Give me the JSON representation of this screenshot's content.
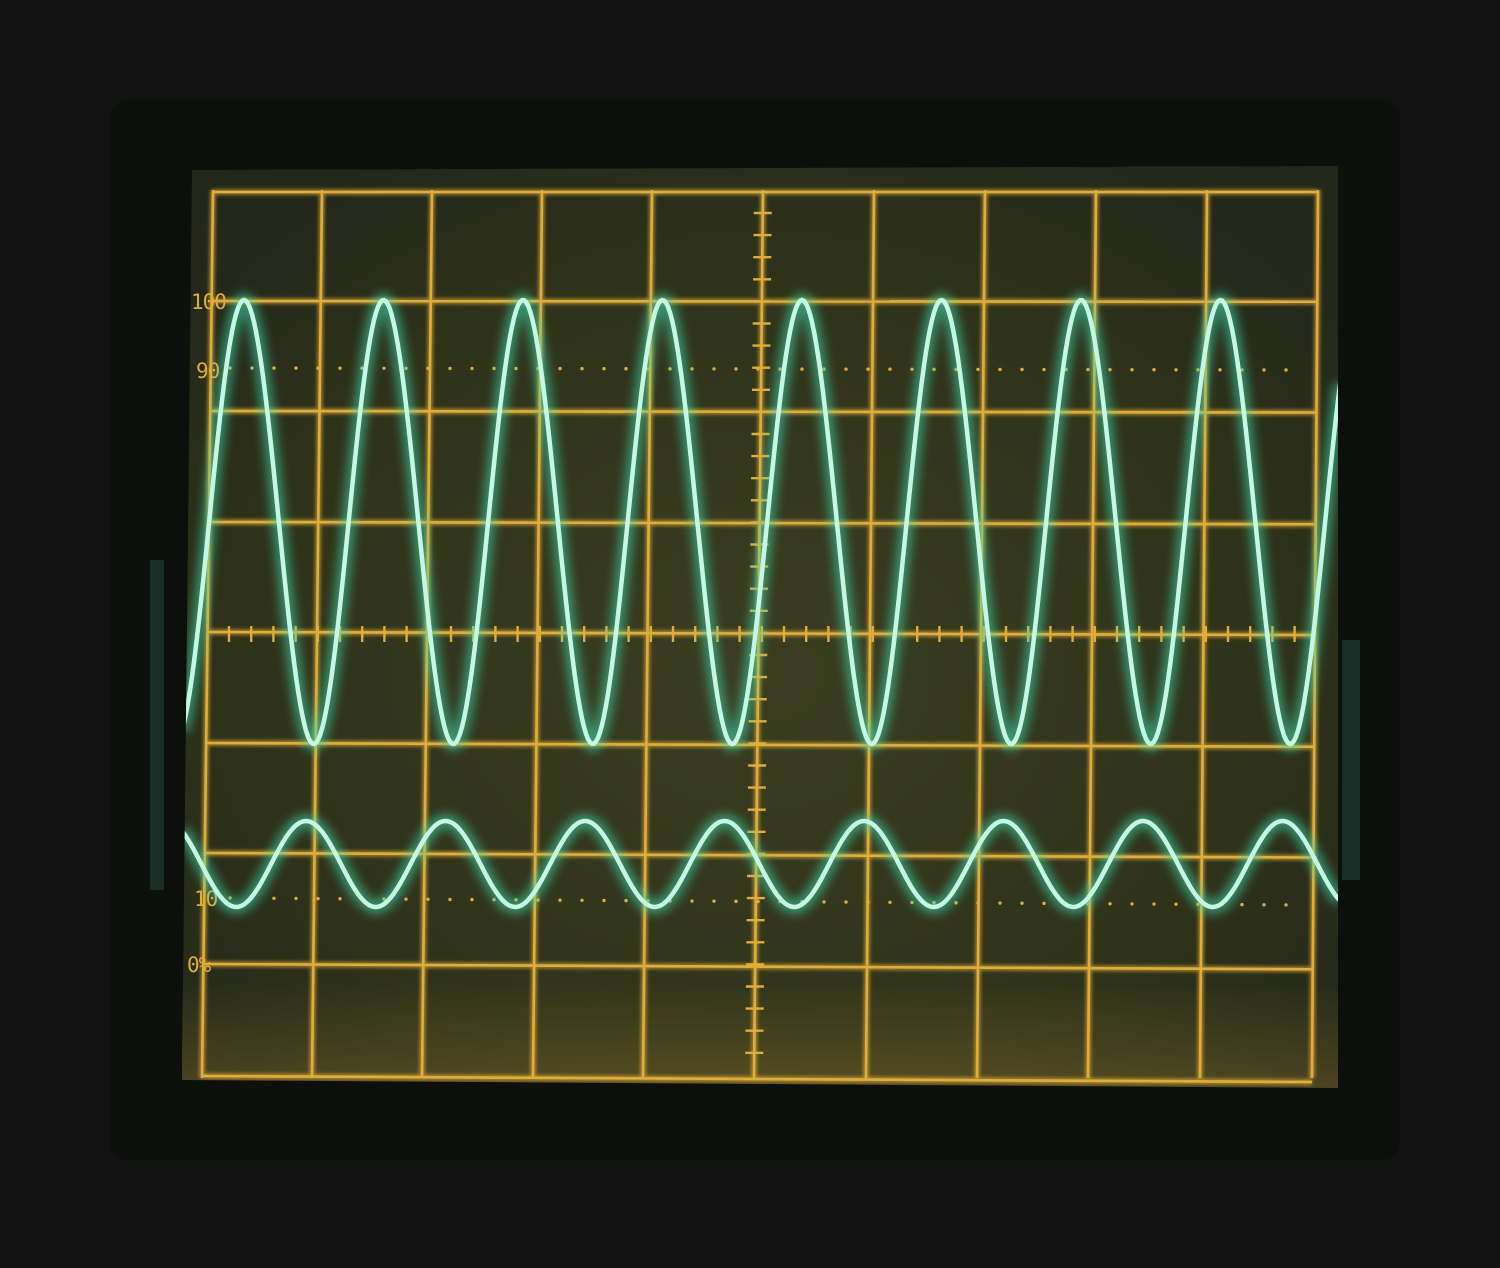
{
  "scope": {
    "colors": {
      "background": "#121212",
      "bezel": "#0d0f0d",
      "screen": "#2e3219",
      "graticule": "#e0ad3a",
      "trace": "#c6f7e6",
      "trace_glow": "#3fe0b0"
    },
    "labels": {
      "l100": "100",
      "l90": "90",
      "l10": "10",
      "l0": "0%"
    },
    "traces": [
      {
        "cycles_visible": 8.1,
        "relative_amplitude": 1.0
      },
      {
        "cycles_visible": 8.1,
        "relative_amplitude": 0.2
      }
    ]
  }
}
